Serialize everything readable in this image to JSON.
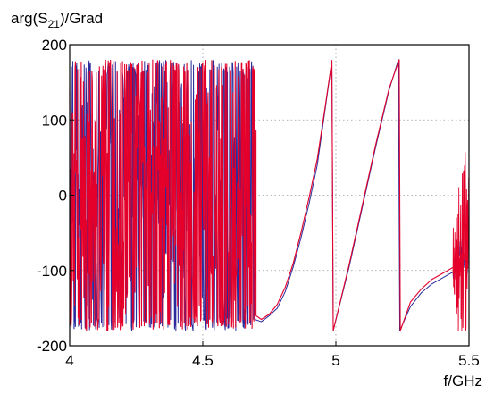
{
  "chart_data": {
    "type": "line",
    "ylabel": {
      "base": "arg(S",
      "sub": "21",
      "rest": ")/Grad"
    },
    "xlabel": "f/GHz",
    "xlim": [
      4.0,
      5.5
    ],
    "ylim": [
      -200,
      200
    ],
    "xticks": [
      4,
      4.5,
      5,
      5.5
    ],
    "xtick_labels": [
      "4",
      "4.5",
      "5",
      "5.5"
    ],
    "yticks": [
      -200,
      -100,
      0,
      100,
      200
    ],
    "ytick_labels": [
      "-200",
      "-100",
      "0",
      "100",
      "200"
    ],
    "grid": true,
    "grid_style": "dotted",
    "legend": "none",
    "series": [
      {
        "color": "#2a2a9a",
        "noise_region": {
          "x_start": 4.0,
          "x_end": 4.695,
          "y_range": [
            -180,
            180
          ]
        },
        "points": [
          [
            4.695,
            -165
          ],
          [
            4.72,
            -168
          ],
          [
            4.75,
            -160
          ],
          [
            4.78,
            -150
          ],
          [
            4.81,
            -128
          ],
          [
            4.84,
            -95
          ],
          [
            4.87,
            -55
          ],
          [
            4.9,
            -10
          ],
          [
            4.93,
            40
          ],
          [
            4.96,
            115
          ],
          [
            4.985,
            178
          ],
          [
            4.99,
            -180
          ],
          [
            5.05,
            -95
          ],
          [
            5.1,
            -15
          ],
          [
            5.15,
            65
          ],
          [
            5.2,
            140
          ],
          [
            5.235,
            180
          ],
          [
            5.24,
            -180
          ],
          [
            5.28,
            -148
          ],
          [
            5.32,
            -130
          ],
          [
            5.36,
            -118
          ],
          [
            5.4,
            -110
          ],
          [
            5.44,
            -102
          ],
          [
            5.47,
            -95
          ],
          [
            5.5,
            -88
          ]
        ]
      },
      {
        "color": "#e4002b",
        "noise_region": {
          "x_start": 4.0,
          "x_end": 4.7,
          "y_range": [
            -180,
            180
          ]
        },
        "points": [
          [
            4.7,
            -160
          ],
          [
            4.72,
            -165
          ],
          [
            4.75,
            -158
          ],
          [
            4.78,
            -145
          ],
          [
            4.81,
            -122
          ],
          [
            4.84,
            -90
          ],
          [
            4.87,
            -48
          ],
          [
            4.9,
            -2
          ],
          [
            4.93,
            48
          ],
          [
            4.96,
            118
          ],
          [
            4.985,
            179
          ],
          [
            4.99,
            -180
          ],
          [
            5.05,
            -92
          ],
          [
            5.1,
            -12
          ],
          [
            5.15,
            68
          ],
          [
            5.2,
            142
          ],
          [
            5.238,
            180
          ],
          [
            5.242,
            -180
          ],
          [
            5.28,
            -142
          ],
          [
            5.32,
            -125
          ],
          [
            5.36,
            -112
          ],
          [
            5.4,
            -104
          ],
          [
            5.44,
            -96
          ],
          [
            5.47,
            -85
          ],
          [
            5.5,
            -70
          ]
        ]
      }
    ]
  }
}
